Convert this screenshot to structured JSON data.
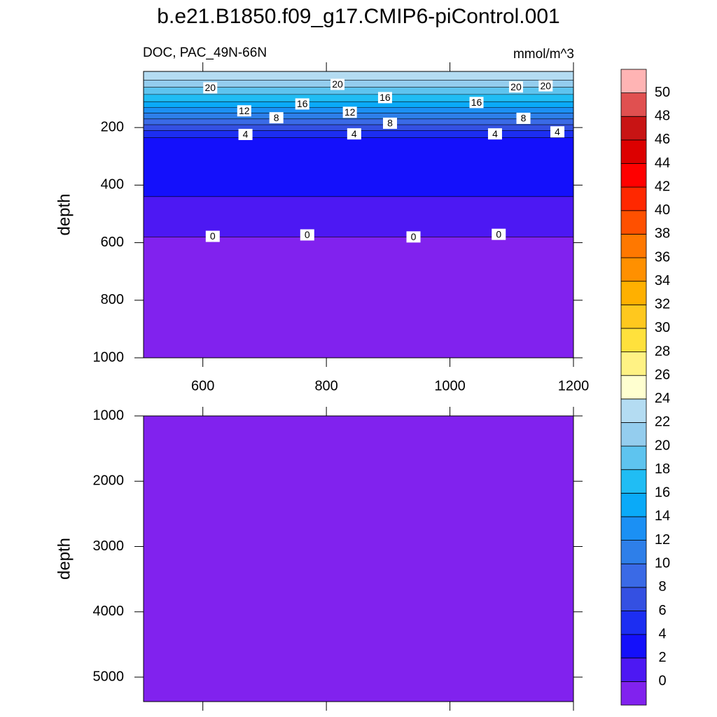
{
  "chart_data": {
    "type": "contour",
    "title": "b.e21.B1850.f09_g17.CMIP6-piControl.001",
    "subtitle": "DOC, PAC_49N-66N",
    "units": "mmol/m^3",
    "levels": [
      0,
      2,
      4,
      6,
      8,
      10,
      12,
      14,
      16,
      18,
      20,
      22,
      24,
      26,
      28,
      30,
      32,
      34,
      36,
      38,
      40,
      42,
      44,
      46,
      48,
      50
    ],
    "colors": [
      "#8122ee",
      "#4d18f3",
      "#1410fb",
      "#1c2ef2",
      "#3450e2",
      "#3a6ae6",
      "#2e7fe9",
      "#1b90f4",
      "#0aaaf8",
      "#20bdf4",
      "#5ec4ef",
      "#94cdee",
      "#b4dcf2",
      "#ffffd0",
      "#fff284",
      "#ffe13c",
      "#ffc81e",
      "#ffb000",
      "#ff9000",
      "#ff7800",
      "#ff5000",
      "#ff2800",
      "#ff0000",
      "#dc0000",
      "#c81414",
      "#e05050",
      "#ffb4b4"
    ],
    "field": {
      "depth": [
        5,
        35,
        60,
        85,
        110,
        130,
        150,
        170,
        190,
        210,
        235,
        440,
        580
      ],
      "values": [
        23,
        21,
        19,
        17,
        15,
        13,
        11,
        9,
        7,
        5,
        3,
        1,
        -1
      ]
    },
    "contour_labels": [
      {
        "x": 612,
        "depth": 62,
        "value": 20
      },
      {
        "x": 818,
        "depth": 50,
        "value": 20
      },
      {
        "x": 895,
        "depth": 96,
        "value": 16
      },
      {
        "x": 1107,
        "depth": 59,
        "value": 20
      },
      {
        "x": 1155,
        "depth": 55,
        "value": 20
      },
      {
        "x": 667,
        "depth": 142,
        "value": 12
      },
      {
        "x": 761,
        "depth": 118,
        "value": 16
      },
      {
        "x": 838,
        "depth": 147,
        "value": 12
      },
      {
        "x": 1043,
        "depth": 113,
        "value": 16
      },
      {
        "x": 719,
        "depth": 166,
        "value": 8
      },
      {
        "x": 903,
        "depth": 185,
        "value": 8
      },
      {
        "x": 1119,
        "depth": 168,
        "value": 8
      },
      {
        "x": 669,
        "depth": 224,
        "value": 4
      },
      {
        "x": 845,
        "depth": 222,
        "value": 4
      },
      {
        "x": 1073,
        "depth": 222,
        "value": 4
      },
      {
        "x": 1174,
        "depth": 215,
        "value": 4
      },
      {
        "x": 616,
        "depth": 578,
        "value": 0
      },
      {
        "x": 769,
        "depth": 573,
        "value": 0
      },
      {
        "x": 941,
        "depth": 580,
        "value": 0
      },
      {
        "x": 1079,
        "depth": 571,
        "value": 0
      }
    ],
    "panels": [
      {
        "ylabel": "depth",
        "xlim": [
          504,
          1200
        ],
        "xticks": [
          600,
          800,
          1000,
          1200
        ],
        "xtick_labels": true,
        "ylim": [
          5,
          1000
        ],
        "yticks": [
          200,
          400,
          600,
          800,
          1000
        ]
      },
      {
        "ylabel": "depth",
        "xlim": [
          504,
          1200
        ],
        "xticks": [
          600,
          800,
          1000,
          1200
        ],
        "xtick_labels": false,
        "ylim": [
          1000,
          5375
        ],
        "yticks": [
          1000,
          2000,
          3000,
          4000,
          5000
        ]
      }
    ]
  }
}
